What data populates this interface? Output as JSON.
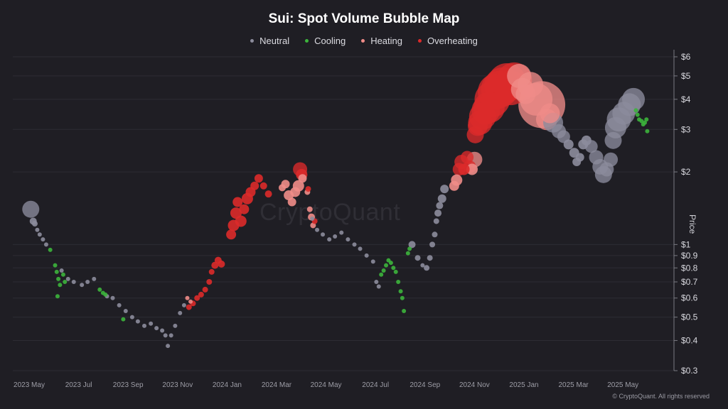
{
  "chart_data": {
    "type": "scatter",
    "title": "Sui: Spot Volume Bubble Map",
    "ylabel": "Price",
    "scale": "log",
    "ylim": [
      0.3,
      6.3
    ],
    "y_ticks": [
      {
        "value": 6,
        "label": "$6"
      },
      {
        "value": 5,
        "label": "$5"
      },
      {
        "value": 4,
        "label": "$4"
      },
      {
        "value": 3,
        "label": "$3"
      },
      {
        "value": 2,
        "label": "$2"
      },
      {
        "value": 1,
        "label": "$1"
      },
      {
        "value": 0.9,
        "label": "$0.9"
      },
      {
        "value": 0.8,
        "label": "$0.8"
      },
      {
        "value": 0.7,
        "label": "$0.7"
      },
      {
        "value": 0.6,
        "label": "$0.6"
      },
      {
        "value": 0.5,
        "label": "$0.5"
      },
      {
        "value": 0.4,
        "label": "$0.4"
      },
      {
        "value": 0.3,
        "label": "$0.3"
      }
    ],
    "x_ticks": [
      "2023 May",
      "2023 Jul",
      "2023 Sep",
      "2023 Nov",
      "2024 Jan",
      "2024 Mar",
      "2024 May",
      "2024 Jul",
      "2024 Sep",
      "2024 Nov",
      "2025 Jan",
      "2025 Mar",
      "2025 May"
    ],
    "grid": "horizontal",
    "legend_position": "top-center",
    "series": [
      {
        "name": "Neutral",
        "color": "#8c8c9c",
        "points": [
          [
            "2023-05-03",
            1.4,
            12
          ],
          [
            "2023-05-06",
            1.25,
            5
          ],
          [
            "2023-05-08",
            1.22,
            4
          ],
          [
            "2023-05-11",
            1.15,
            3
          ],
          [
            "2023-05-14",
            1.1,
            3
          ],
          [
            "2023-05-18",
            1.05,
            3
          ],
          [
            "2023-05-22",
            1.0,
            3
          ],
          [
            "2023-06-10",
            0.78,
            3
          ],
          [
            "2023-06-18",
            0.72,
            3
          ],
          [
            "2023-06-25",
            0.7,
            3
          ],
          [
            "2023-07-05",
            0.68,
            3
          ],
          [
            "2023-07-12",
            0.7,
            3
          ],
          [
            "2023-07-20",
            0.72,
            3
          ],
          [
            "2023-08-05",
            0.61,
            3
          ],
          [
            "2023-08-12",
            0.6,
            3
          ],
          [
            "2023-08-20",
            0.56,
            3
          ],
          [
            "2023-08-28",
            0.53,
            3
          ],
          [
            "2023-09-05",
            0.5,
            3
          ],
          [
            "2023-09-12",
            0.48,
            3
          ],
          [
            "2023-09-20",
            0.46,
            3
          ],
          [
            "2023-09-28",
            0.47,
            3
          ],
          [
            "2023-10-05",
            0.45,
            3
          ],
          [
            "2023-10-12",
            0.44,
            3
          ],
          [
            "2023-10-16",
            0.42,
            3
          ],
          [
            "2023-10-19",
            0.38,
            3
          ],
          [
            "2023-10-23",
            0.42,
            3
          ],
          [
            "2023-10-28",
            0.46,
            3
          ],
          [
            "2023-11-03",
            0.52,
            3
          ],
          [
            "2023-11-08",
            0.56,
            3
          ],
          [
            "2024-04-14",
            1.28,
            3
          ],
          [
            "2024-04-20",
            1.15,
            3
          ],
          [
            "2024-04-27",
            1.1,
            3
          ],
          [
            "2024-05-05",
            1.05,
            3
          ],
          [
            "2024-05-12",
            1.08,
            3
          ],
          [
            "2024-05-20",
            1.12,
            3
          ],
          [
            "2024-05-28",
            1.05,
            3
          ],
          [
            "2024-06-05",
            1.0,
            3
          ],
          [
            "2024-06-12",
            0.96,
            3
          ],
          [
            "2024-06-20",
            0.9,
            3
          ],
          [
            "2024-06-28",
            0.85,
            3
          ],
          [
            "2024-07-02",
            0.7,
            3
          ],
          [
            "2024-07-05",
            0.67,
            3
          ],
          [
            "2024-08-15",
            1.0,
            5
          ],
          [
            "2024-08-22",
            0.88,
            4
          ],
          [
            "2024-08-28",
            0.82,
            3
          ],
          [
            "2024-09-02",
            0.8,
            4
          ],
          [
            "2024-09-06",
            0.88,
            4
          ],
          [
            "2024-09-09",
            1.0,
            4
          ],
          [
            "2024-09-12",
            1.1,
            4
          ],
          [
            "2024-09-14",
            1.25,
            4
          ],
          [
            "2024-09-16",
            1.35,
            5
          ],
          [
            "2024-09-18",
            1.45,
            5
          ],
          [
            "2024-09-21",
            1.55,
            6
          ],
          [
            "2024-09-24",
            1.7,
            6
          ],
          [
            "2025-02-05",
            3.2,
            14
          ],
          [
            "2025-02-12",
            2.95,
            10
          ],
          [
            "2025-02-18",
            2.8,
            9
          ],
          [
            "2025-02-24",
            2.6,
            7
          ],
          [
            "2025-03-03",
            2.4,
            7
          ],
          [
            "2025-03-06",
            2.2,
            6
          ],
          [
            "2025-03-10",
            2.3,
            6
          ],
          [
            "2025-03-14",
            2.6,
            7
          ],
          [
            "2025-03-18",
            2.7,
            7
          ],
          [
            "2025-03-24",
            2.55,
            9
          ],
          [
            "2025-03-30",
            2.3,
            10
          ],
          [
            "2025-04-04",
            2.1,
            11
          ],
          [
            "2025-04-08",
            1.95,
            12
          ],
          [
            "2025-04-12",
            2.05,
            10
          ],
          [
            "2025-04-17",
            2.25,
            10
          ],
          [
            "2025-04-20",
            2.7,
            12
          ],
          [
            "2025-04-23",
            3.05,
            15
          ],
          [
            "2025-04-27",
            3.3,
            17
          ],
          [
            "2025-05-03",
            3.5,
            16
          ],
          [
            "2025-05-10",
            3.8,
            16
          ],
          [
            "2025-05-15",
            4.0,
            16
          ]
        ]
      },
      {
        "name": "Cooling",
        "color": "#3cb43c",
        "points": [
          [
            "2023-05-27",
            0.95,
            3
          ],
          [
            "2023-06-02",
            0.82,
            3
          ],
          [
            "2023-06-04",
            0.77,
            3
          ],
          [
            "2023-06-06",
            0.72,
            3
          ],
          [
            "2023-06-08",
            0.68,
            3
          ],
          [
            "2023-06-05",
            0.61,
            3
          ],
          [
            "2023-06-12",
            0.75,
            3
          ],
          [
            "2023-06-14",
            0.7,
            3
          ],
          [
            "2023-07-27",
            0.65,
            3
          ],
          [
            "2023-07-31",
            0.63,
            3
          ],
          [
            "2023-08-03",
            0.62,
            3
          ],
          [
            "2023-08-25",
            0.49,
            3
          ],
          [
            "2024-07-08",
            0.75,
            3
          ],
          [
            "2024-07-11",
            0.78,
            3
          ],
          [
            "2024-07-14",
            0.82,
            3
          ],
          [
            "2024-07-17",
            0.86,
            3
          ],
          [
            "2024-07-20",
            0.84,
            3
          ],
          [
            "2024-07-23",
            0.8,
            3
          ],
          [
            "2024-07-26",
            0.77,
            3
          ],
          [
            "2024-07-29",
            0.7,
            3
          ],
          [
            "2024-08-01",
            0.64,
            3
          ],
          [
            "2024-08-03",
            0.6,
            3
          ],
          [
            "2024-08-05",
            0.53,
            3
          ],
          [
            "2024-08-10",
            0.92,
            3
          ],
          [
            "2024-08-12",
            0.96,
            3
          ],
          [
            "2025-05-18",
            3.6,
            3
          ],
          [
            "2025-05-20",
            3.45,
            3
          ],
          [
            "2025-05-22",
            3.3,
            3
          ],
          [
            "2025-05-25",
            3.25,
            3
          ],
          [
            "2025-05-27",
            3.15,
            3
          ],
          [
            "2025-05-29",
            3.2,
            3
          ],
          [
            "2025-05-31",
            3.3,
            3
          ],
          [
            "2025-06-01",
            2.95,
            3
          ]
        ]
      },
      {
        "name": "Heating",
        "color": "#f08c88",
        "points": [
          [
            "2023-11-12",
            0.6,
            3
          ],
          [
            "2023-11-16",
            0.58,
            3
          ],
          [
            "2024-03-08",
            1.72,
            5
          ],
          [
            "2024-03-12",
            1.78,
            6
          ],
          [
            "2024-03-16",
            1.6,
            7
          ],
          [
            "2024-03-20",
            1.5,
            6
          ],
          [
            "2024-03-24",
            1.65,
            7
          ],
          [
            "2024-03-28",
            1.75,
            8
          ],
          [
            "2024-04-02",
            1.88,
            6
          ],
          [
            "2024-04-08",
            1.65,
            4
          ],
          [
            "2024-04-11",
            1.4,
            4
          ],
          [
            "2024-04-13",
            1.3,
            5
          ],
          [
            "2024-04-15",
            1.2,
            4
          ],
          [
            "2024-10-06",
            1.75,
            7
          ],
          [
            "2024-10-09",
            1.85,
            8
          ],
          [
            "2024-10-28",
            2.05,
            8
          ],
          [
            "2024-10-31",
            2.25,
            11
          ],
          [
            "2024-12-25",
            5.0,
            17
          ],
          [
            "2024-12-29",
            4.4,
            16
          ],
          [
            "2025-01-02",
            4.2,
            14
          ],
          [
            "2025-01-08",
            4.6,
            18
          ],
          [
            "2025-01-15",
            4.0,
            23
          ],
          [
            "2025-01-22",
            3.8,
            33
          ],
          [
            "2025-01-28",
            3.3,
            15
          ],
          [
            "2025-02-01",
            3.5,
            14
          ]
        ]
      },
      {
        "name": "Overheating",
        "color": "#dc2a2a",
        "points": [
          [
            "2023-11-14",
            0.55,
            4
          ],
          [
            "2023-11-19",
            0.57,
            4
          ],
          [
            "2023-11-24",
            0.6,
            4
          ],
          [
            "2023-11-29",
            0.62,
            4
          ],
          [
            "2023-12-04",
            0.65,
            4
          ],
          [
            "2023-12-09",
            0.7,
            4
          ],
          [
            "2023-12-12",
            0.77,
            4
          ],
          [
            "2023-12-16",
            0.82,
            5
          ],
          [
            "2023-12-20",
            0.86,
            5
          ],
          [
            "2023-12-24",
            0.83,
            5
          ],
          [
            "2024-01-05",
            1.1,
            7
          ],
          [
            "2024-01-08",
            1.2,
            8
          ],
          [
            "2024-01-11",
            1.35,
            8
          ],
          [
            "2024-01-13",
            1.5,
            7
          ],
          [
            "2024-01-17",
            1.25,
            8
          ],
          [
            "2024-01-21",
            1.4,
            7
          ],
          [
            "2024-01-25",
            1.55,
            8
          ],
          [
            "2024-01-29",
            1.65,
            7
          ],
          [
            "2024-02-03",
            1.75,
            6
          ],
          [
            "2024-02-08",
            1.88,
            6
          ],
          [
            "2024-02-14",
            1.75,
            5
          ],
          [
            "2024-02-20",
            1.62,
            5
          ],
          [
            "2024-03-30",
            2.05,
            10
          ],
          [
            "2024-04-01",
            1.95,
            8
          ],
          [
            "2024-04-09",
            1.7,
            4
          ],
          [
            "2024-04-17",
            1.25,
            4
          ],
          [
            "2024-10-12",
            2.05,
            9
          ],
          [
            "2024-10-15",
            2.2,
            10
          ],
          [
            "2024-10-18",
            2.05,
            8
          ],
          [
            "2024-10-22",
            2.3,
            9
          ],
          [
            "2024-10-25",
            2.1,
            9
          ],
          [
            "2024-11-01",
            2.85,
            12
          ],
          [
            "2024-11-04",
            3.1,
            14
          ],
          [
            "2024-11-07",
            3.2,
            17
          ],
          [
            "2024-11-10",
            3.4,
            19
          ],
          [
            "2024-11-14",
            3.6,
            20
          ],
          [
            "2024-11-18",
            3.7,
            22
          ],
          [
            "2024-11-22",
            4.0,
            25
          ],
          [
            "2024-11-26",
            4.3,
            25
          ],
          [
            "2024-12-01",
            4.4,
            26
          ],
          [
            "2024-12-05",
            4.55,
            26
          ],
          [
            "2024-12-10",
            4.7,
            27
          ],
          [
            "2024-12-15",
            4.45,
            24
          ],
          [
            "2024-12-19",
            4.8,
            25
          ]
        ]
      }
    ]
  },
  "watermark": "CryptoQuant",
  "footer": "© CryptoQuant. All rights reserved"
}
